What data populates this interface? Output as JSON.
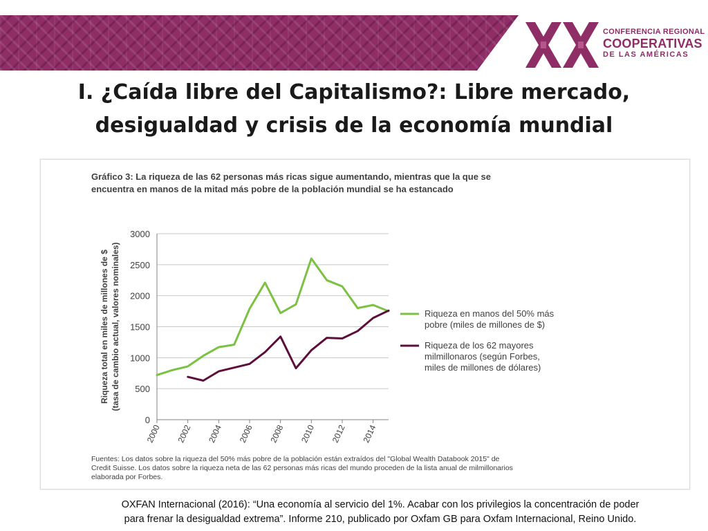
{
  "header": {
    "logo": {
      "line1": "CONFERENCIA REGIONAL",
      "line2": "COOPERATIVAS",
      "line3": "DE LAS AMÉRICAS",
      "mark": "XX"
    }
  },
  "slide_title": {
    "line1": "I. ¿Caída libre del Capitalismo?: Libre mercado,",
    "line2": "desigualdad y crisis de la economía mundial"
  },
  "figure": {
    "title": "Gráfico 3: La riqueza de las 62 personas más ricas sigue aumentando, mientras que la que se encuentra en manos de la mitad más pobre de la población mundial se ha estancado",
    "source": "Fuentes: Los datos sobre la riqueza del 50% más pobre de la población están extraídos del \"Global Wealth Databook 2015\" de Credit Suisse. Los datos sobre la riqueza neta de las 62 personas más ricas del mundo proceden de la lista anual de milmillonarios elaborada por Forbes."
  },
  "citation": {
    "line1": "OXFAN Internacional (2016): “Una economía al servicio del 1%. Acabar con los privilegios la concentración de poder",
    "line2": "para frenar la desigualdad extrema”. Informe 210, publicado por Oxfam GB para Oxfam Internacional, Reino Unido."
  },
  "colors": {
    "brand": "#8e2d66",
    "series_poorest": "#7bc142",
    "series_richest": "#5b0f3a",
    "grid": "#c8c8c8",
    "axis_text": "#404040"
  },
  "chart_data": {
    "type": "line",
    "title": "Gráfico 3: La riqueza de las 62 personas más ricas sigue aumentando, mientras que la que se encuentra en manos de la mitad más pobre de la población mundial se ha estancado",
    "ylabel_line1": "Riqueza total en miles de millones de $",
    "ylabel_line2": "(tasa de cambio actual, valores nominales)",
    "xlabel": "",
    "xlim": [
      2000,
      2015
    ],
    "ylim": [
      0,
      3000
    ],
    "y_ticks": [
      0,
      500,
      1000,
      1500,
      2000,
      2500,
      3000
    ],
    "x_ticks": [
      2000,
      2002,
      2004,
      2006,
      2008,
      2010,
      2012,
      2014
    ],
    "grid": true,
    "legend_position": "right",
    "series": [
      {
        "name_line1": "Riqueza en manos del 50% más",
        "name_line2": "pobre (miles de millones de $)",
        "color": "#7bc142",
        "x": [
          2000,
          2001,
          2002,
          2003,
          2004,
          2005,
          2006,
          2007,
          2008,
          2009,
          2010,
          2011,
          2012,
          2013,
          2014,
          2015
        ],
        "values": [
          720,
          800,
          860,
          1030,
          1170,
          1210,
          1790,
          2210,
          1720,
          1860,
          2600,
          2250,
          2150,
          1800,
          1850,
          1750
        ]
      },
      {
        "name_line1": "Riqueza de los 62 mayores",
        "name_line2": "milmillonaros (según Forbes,",
        "name_line3": "miles de millones de dólares)",
        "color": "#5b0f3a",
        "x": [
          2002,
          2003,
          2004,
          2005,
          2006,
          2007,
          2008,
          2009,
          2010,
          2011,
          2012,
          2013,
          2014,
          2015
        ],
        "values": [
          690,
          630,
          780,
          840,
          900,
          1090,
          1340,
          830,
          1120,
          1320,
          1310,
          1430,
          1640,
          1760
        ]
      }
    ]
  }
}
